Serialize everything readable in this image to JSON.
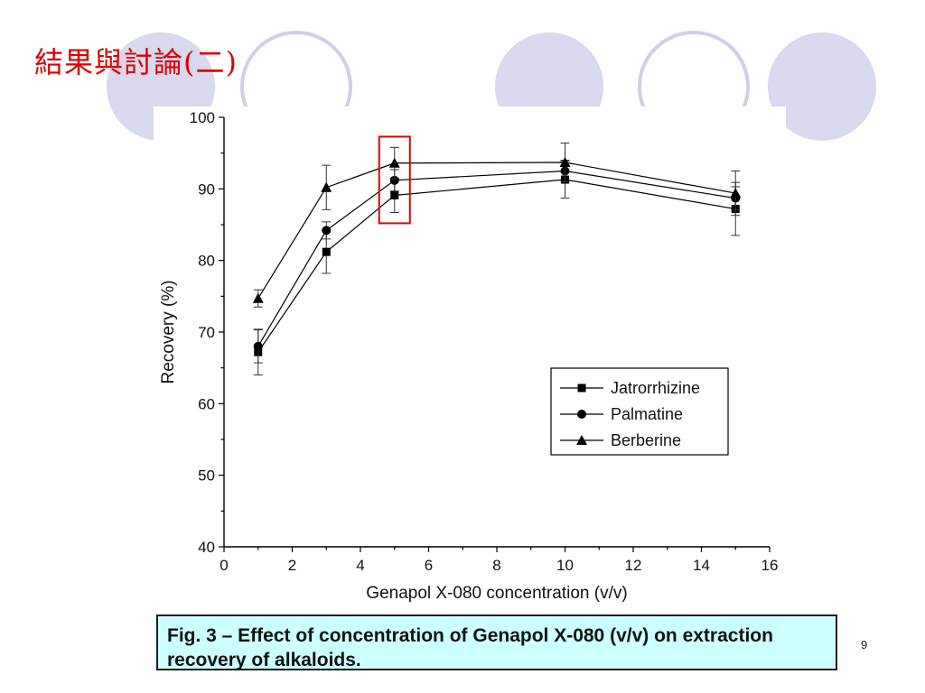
{
  "slide": {
    "title": "結果與討論(二)",
    "caption": "Fig. 3 – Effect of concentration of Genapol X-080 (v/v) on extraction recovery of alkaloids.",
    "page_number": "9",
    "colors": {
      "title": "#e00000",
      "caption_background": "#ccffff",
      "decoration_fill": "#d8d8ee",
      "decoration_stroke": "#cfcfe6",
      "highlight_box": "#e00000"
    }
  },
  "chart_data": {
    "type": "line",
    "title": "",
    "xlabel": "Genapol X-080 concentration (v/v)",
    "ylabel": "Recovery (%)",
    "xlim": [
      0,
      16
    ],
    "ylim": [
      40,
      100
    ],
    "xticks": [
      0,
      2,
      4,
      6,
      8,
      10,
      12,
      14,
      16
    ],
    "yticks": [
      40,
      50,
      60,
      70,
      80,
      90,
      100
    ],
    "x": [
      1,
      3,
      5,
      10,
      15
    ],
    "series": [
      {
        "name": "Jatrorrhizine",
        "marker": "square",
        "values": [
          67.2,
          81.2,
          89.1,
          91.3,
          87.2
        ],
        "errors": [
          3.2,
          3.0,
          2.4,
          2.6,
          3.7
        ]
      },
      {
        "name": "Palmatine",
        "marker": "circle",
        "values": [
          68.0,
          84.2,
          91.2,
          92.5,
          88.7
        ],
        "errors": [
          2.3,
          1.2,
          1.5,
          1.5,
          1.6
        ]
      },
      {
        "name": "Berberine",
        "marker": "triangle",
        "values": [
          74.7,
          90.2,
          93.6,
          93.7,
          89.4
        ],
        "errors": [
          1.2,
          3.1,
          2.2,
          2.7,
          3.1
        ]
      }
    ],
    "legend_position": "lower-right",
    "highlight_x": 5,
    "grid": false
  }
}
